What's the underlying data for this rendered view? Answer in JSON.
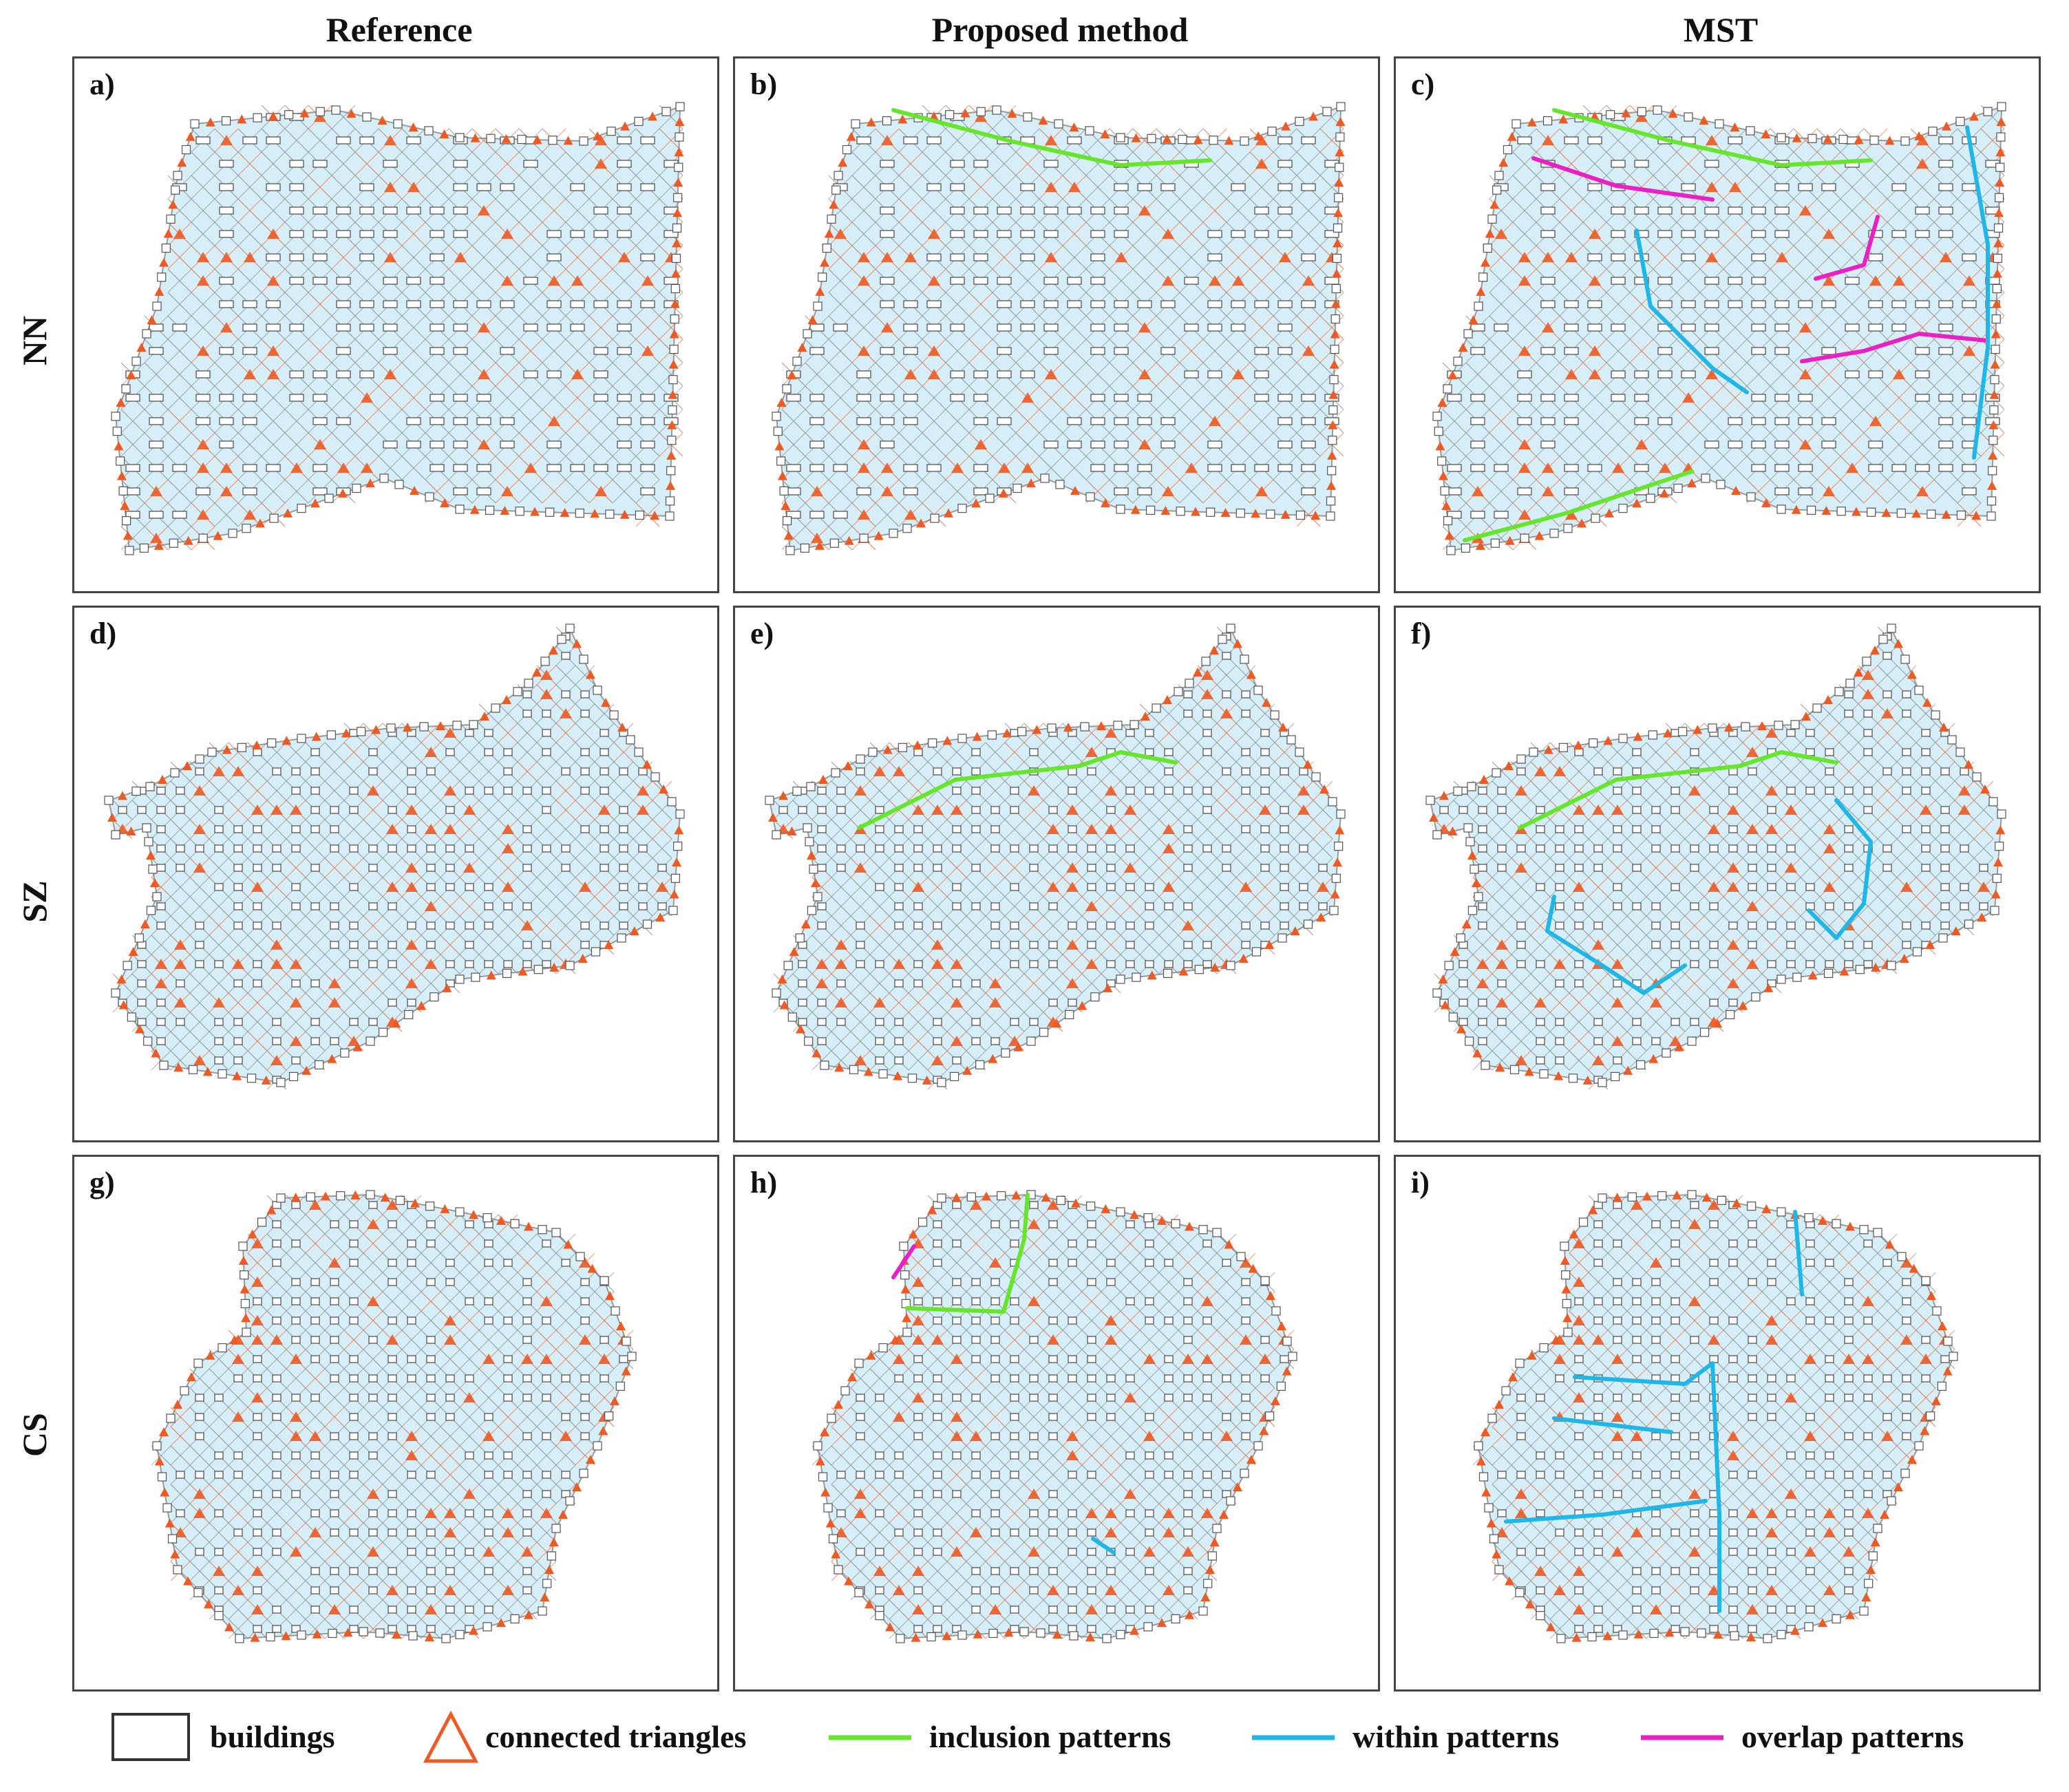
{
  "columns": {
    "reference": "Reference",
    "proposed": "Proposed method",
    "mst": "MST"
  },
  "rows": {
    "nn": "NN",
    "sz": "SZ",
    "cs": "CS"
  },
  "panels": {
    "a": "a)",
    "b": "b)",
    "c": "c)",
    "d": "d)",
    "e": "e)",
    "f": "f)",
    "g": "g)",
    "h": "h)",
    "i": "i)"
  },
  "legend": {
    "buildings": "buildings",
    "connected_triangles": "connected triangles",
    "inclusion_patterns": "inclusion patterns",
    "within_patterns": "within patterns",
    "overlap_patterns": "overlap patterns"
  },
  "colors": {
    "triangle_fill": "#d6eef8",
    "triangle_edge": "#808080",
    "connected": "#ee5a24",
    "inclusion": "#66e62a",
    "within": "#1fb6e8",
    "overlap": "#ea1fc4"
  }
}
